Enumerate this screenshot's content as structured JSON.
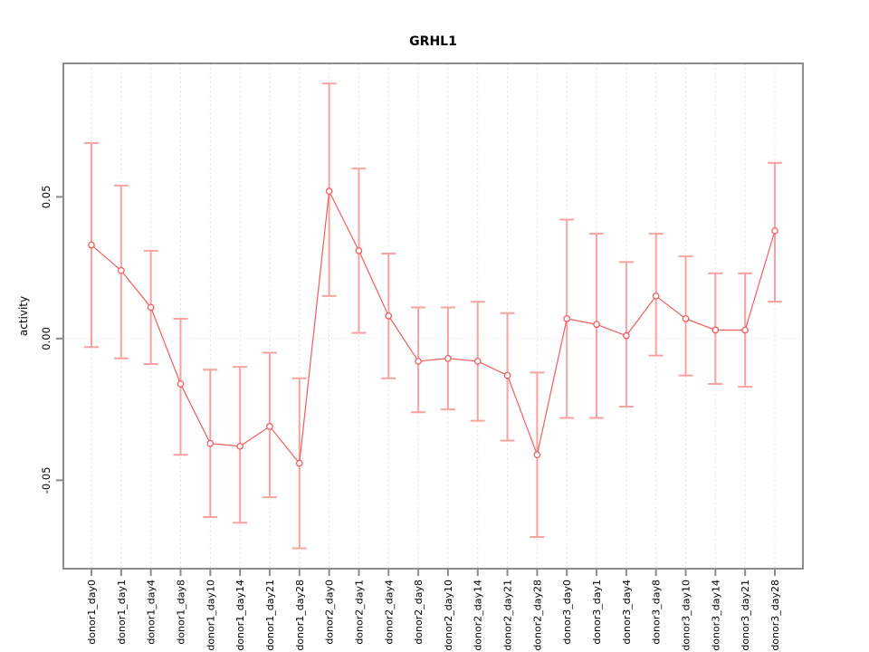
{
  "title": "GRHL1",
  "chart_data": {
    "type": "line",
    "title": "GRHL1",
    "xlabel": "",
    "ylabel": "activity",
    "legend": "none",
    "grid": "vertical dashed gridlines at each category; dotted horizontal line at y=0",
    "point_style": "open circles with vertical error bars",
    "categories": [
      "donor1_day0",
      "donor1_day1",
      "donor1_day4",
      "donor1_day8",
      "donor1_day10",
      "donor1_day14",
      "donor1_day21",
      "donor1_day28",
      "donor2_day0",
      "donor2_day1",
      "donor2_day4",
      "donor2_day8",
      "donor2_day10",
      "donor2_day14",
      "donor2_day21",
      "donor2_day28",
      "donor3_day0",
      "donor3_day1",
      "donor3_day4",
      "donor3_day8",
      "donor3_day10",
      "donor3_day14",
      "donor3_day21",
      "donor3_day28"
    ],
    "series": [
      {
        "name": "activity",
        "values": [
          0.033,
          0.024,
          0.011,
          -0.016,
          -0.037,
          -0.038,
          -0.031,
          -0.044,
          0.052,
          0.031,
          0.008,
          -0.008,
          -0.007,
          -0.008,
          -0.013,
          -0.041,
          0.007,
          0.005,
          0.001,
          0.015,
          0.007,
          0.003,
          0.003,
          0.038
        ],
        "err_high": [
          0.069,
          0.054,
          0.031,
          0.007,
          -0.011,
          -0.01,
          -0.005,
          -0.014,
          0.09,
          0.06,
          0.03,
          0.011,
          0.011,
          0.013,
          0.009,
          -0.012,
          0.042,
          0.037,
          0.027,
          0.037,
          0.029,
          0.023,
          0.023,
          0.062
        ],
        "err_low": [
          -0.003,
          -0.007,
          -0.009,
          -0.041,
          -0.063,
          -0.065,
          -0.056,
          -0.074,
          0.015,
          0.002,
          -0.014,
          -0.026,
          -0.025,
          -0.029,
          -0.036,
          -0.07,
          -0.028,
          -0.028,
          -0.024,
          -0.006,
          -0.013,
          -0.016,
          -0.017,
          0.013
        ]
      }
    ],
    "yticks": [
      -0.05,
      0.0,
      0.05
    ],
    "ylim": [
      -0.0812,
      0.0971
    ],
    "colors": {
      "line": "#f25d5d",
      "point": "#f25d5d",
      "error_bar": "#f9a2a2",
      "grid": "#e0e0e0",
      "zero_line": "#dcdcdc",
      "axis_box": "#8c8c8c",
      "tick": "#8c8c8c",
      "text": "#000000"
    }
  }
}
